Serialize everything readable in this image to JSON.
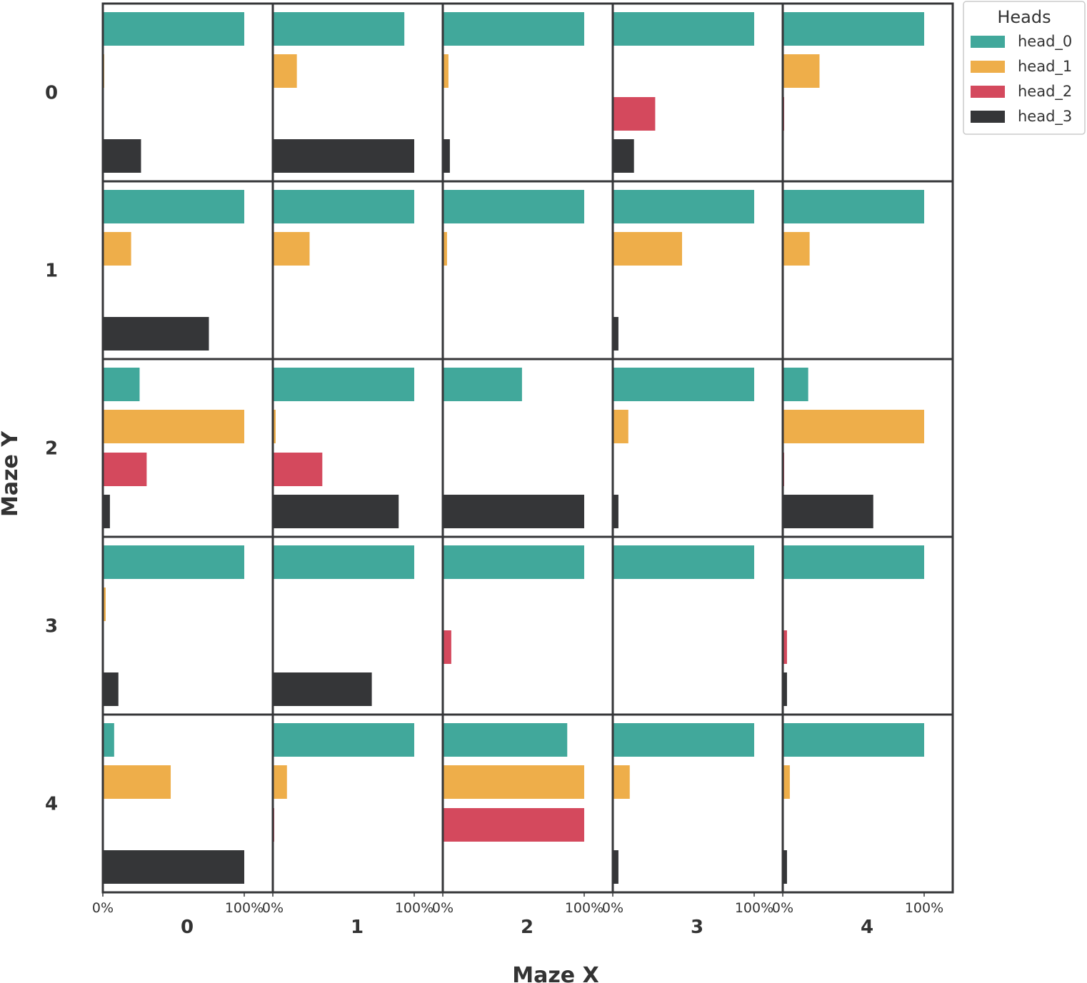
{
  "chart_data": {
    "type": "bar",
    "orientation": "horizontal",
    "xlabel": "Maze X",
    "ylabel": "Maze Y",
    "x_categories": [
      "0",
      "1",
      "2",
      "3",
      "4"
    ],
    "y_categories": [
      "0",
      "1",
      "2",
      "3",
      "4"
    ],
    "x_tick_labels": [
      "0%",
      "100%"
    ],
    "value_unit": "percent",
    "xlim": [
      0,
      120
    ],
    "legend": {
      "title": "Heads",
      "placement": "upper-right-outside",
      "entries": [
        "head_0",
        "head_1",
        "head_2",
        "head_3"
      ]
    },
    "series": [
      {
        "name": "head_0",
        "color": "#41a89b"
      },
      {
        "name": "head_1",
        "color": "#eeae4a"
      },
      {
        "name": "head_2",
        "color": "#d4495d"
      },
      {
        "name": "head_3",
        "color": "#353638"
      }
    ],
    "panels": [
      {
        "y": "0",
        "x": "0",
        "values": [
          100,
          1,
          0,
          27
        ]
      },
      {
        "y": "0",
        "x": "1",
        "values": [
          93,
          17,
          0,
          100
        ]
      },
      {
        "y": "0",
        "x": "2",
        "values": [
          100,
          4,
          0,
          5
        ]
      },
      {
        "y": "0",
        "x": "3",
        "values": [
          100,
          0,
          30,
          15
        ]
      },
      {
        "y": "0",
        "x": "4",
        "values": [
          100,
          26,
          1,
          0
        ]
      },
      {
        "y": "1",
        "x": "0",
        "values": [
          100,
          20,
          0,
          75
        ]
      },
      {
        "y": "1",
        "x": "1",
        "values": [
          100,
          26,
          0,
          0
        ]
      },
      {
        "y": "1",
        "x": "2",
        "values": [
          100,
          3,
          0,
          0
        ]
      },
      {
        "y": "1",
        "x": "3",
        "values": [
          100,
          49,
          0,
          4
        ]
      },
      {
        "y": "1",
        "x": "4",
        "values": [
          100,
          19,
          0,
          0
        ]
      },
      {
        "y": "2",
        "x": "0",
        "values": [
          26,
          100,
          31,
          5
        ]
      },
      {
        "y": "2",
        "x": "1",
        "values": [
          100,
          2,
          35,
          89
        ]
      },
      {
        "y": "2",
        "x": "2",
        "values": [
          56,
          0,
          0,
          100
        ]
      },
      {
        "y": "2",
        "x": "3",
        "values": [
          100,
          11,
          0,
          4
        ]
      },
      {
        "y": "2",
        "x": "4",
        "values": [
          18,
          100,
          1,
          64
        ]
      },
      {
        "y": "3",
        "x": "0",
        "values": [
          100,
          2,
          0,
          11
        ]
      },
      {
        "y": "3",
        "x": "1",
        "values": [
          100,
          0,
          0,
          70
        ]
      },
      {
        "y": "3",
        "x": "2",
        "values": [
          100,
          0,
          6,
          0
        ]
      },
      {
        "y": "3",
        "x": "3",
        "values": [
          100,
          0,
          0,
          0
        ]
      },
      {
        "y": "3",
        "x": "4",
        "values": [
          100,
          0,
          3,
          3
        ]
      },
      {
        "y": "4",
        "x": "0",
        "values": [
          8,
          48,
          0,
          100
        ]
      },
      {
        "y": "4",
        "x": "1",
        "values": [
          100,
          10,
          1,
          0
        ]
      },
      {
        "y": "4",
        "x": "2",
        "values": [
          88,
          100,
          100,
          0
        ]
      },
      {
        "y": "4",
        "x": "3",
        "values": [
          100,
          12,
          0,
          4
        ]
      },
      {
        "y": "4",
        "x": "4",
        "values": [
          100,
          5,
          0,
          3
        ]
      }
    ]
  }
}
